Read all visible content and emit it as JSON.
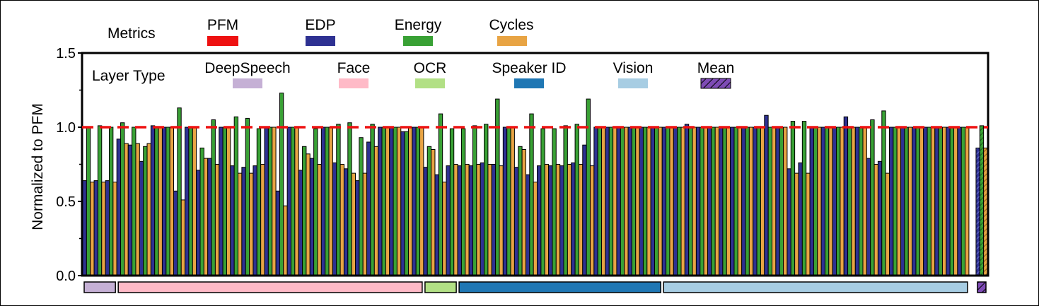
{
  "chart_data": {
    "type": "bar",
    "ylabel": "Normalized to PFM",
    "ylim": [
      0.0,
      1.5
    ],
    "yticks": [
      "0.0",
      "0.5",
      "1.0",
      "1.5"
    ],
    "reference_line": {
      "name": "PFM",
      "value": 1.0,
      "color": "#ee1111"
    },
    "metrics_title": "Metrics",
    "metrics_legend": [
      {
        "name": "PFM",
        "color": "#ee1111"
      },
      {
        "name": "EDP",
        "color": "#2e3192"
      },
      {
        "name": "Energy",
        "color": "#39a135"
      },
      {
        "name": "Cycles",
        "color": "#e8a444"
      }
    ],
    "layer_title": "Layer Type",
    "layer_types": [
      {
        "name": "DeepSpeech",
        "color": "#c5b0d5",
        "count": 3
      },
      {
        "name": "Face",
        "color": "#ffbac7",
        "count": 27
      },
      {
        "name": "OCR",
        "color": "#b2e085",
        "count": 3
      },
      {
        "name": "Speaker ID",
        "color": "#1f77b4",
        "count": 18
      },
      {
        "name": "Vision",
        "color": "#a7cde3",
        "count": 27
      },
      {
        "name": "Mean",
        "color": "#7e4bb5",
        "hatched": true,
        "count": 1
      }
    ],
    "series_order": [
      "EDP",
      "Energy",
      "Cycles"
    ],
    "groups": [
      [
        0.64,
        1.0,
        0.63
      ],
      [
        0.64,
        1.01,
        0.63
      ],
      [
        0.64,
        1.0,
        0.63
      ],
      [
        0.92,
        1.03,
        0.89
      ],
      [
        0.88,
        1.0,
        0.89
      ],
      [
        0.77,
        0.87,
        0.89
      ],
      [
        1.01,
        1.0,
        1.0
      ],
      [
        1.0,
        1.0,
        1.0
      ],
      [
        0.57,
        1.13,
        0.51
      ],
      [
        1.0,
        1.0,
        1.0
      ],
      [
        0.71,
        0.86,
        0.79
      ],
      [
        0.79,
        1.05,
        0.75
      ],
      [
        1.0,
        1.0,
        1.0
      ],
      [
        0.74,
        1.07,
        0.69
      ],
      [
        0.73,
        1.06,
        0.69
      ],
      [
        0.74,
        0.99,
        0.75
      ],
      [
        1.0,
        1.0,
        1.0
      ],
      [
        0.57,
        1.23,
        0.47
      ],
      [
        1.0,
        1.0,
        1.0
      ],
      [
        0.71,
        0.87,
        0.82
      ],
      [
        0.79,
        0.99,
        0.75
      ],
      [
        1.0,
        1.0,
        1.0
      ],
      [
        0.76,
        1.02,
        0.75
      ],
      [
        0.72,
        1.03,
        0.69
      ],
      [
        0.64,
        0.93,
        0.69
      ],
      [
        0.9,
        1.02,
        0.87
      ],
      [
        1.0,
        1.0,
        1.0
      ],
      [
        1.0,
        1.0,
        1.0
      ],
      [
        0.97,
        0.97,
        1.0
      ],
      [
        1.0,
        1.0,
        1.0
      ],
      [
        0.73,
        0.87,
        0.85
      ],
      [
        0.68,
        1.09,
        0.63
      ],
      [
        0.74,
        0.99,
        0.75
      ],
      [
        0.74,
        0.99,
        0.75
      ],
      [
        0.74,
        1.01,
        0.75
      ],
      [
        0.76,
        1.02,
        0.75
      ],
      [
        0.75,
        1.19,
        0.74
      ],
      [
        1.0,
        1.0,
        1.0
      ],
      [
        0.73,
        0.87,
        0.85
      ],
      [
        0.68,
        1.09,
        0.63
      ],
      [
        0.74,
        0.99,
        0.75
      ],
      [
        0.74,
        0.99,
        0.75
      ],
      [
        0.74,
        1.01,
        0.75
      ],
      [
        0.76,
        1.02,
        0.75
      ],
      [
        0.88,
        1.19,
        0.74
      ],
      [
        1.0,
        1.0,
        1.0
      ],
      [
        1.0,
        1.0,
        1.0
      ],
      [
        1.0,
        1.0,
        1.0
      ],
      [
        1.0,
        1.0,
        1.0
      ],
      [
        1.0,
        1.0,
        1.0
      ],
      [
        1.0,
        1.0,
        1.0
      ],
      [
        1.0,
        1.0,
        1.0
      ],
      [
        1.0,
        1.0,
        1.0
      ],
      [
        1.02,
        1.0,
        1.0
      ],
      [
        1.0,
        1.0,
        1.0
      ],
      [
        1.0,
        1.0,
        1.0
      ],
      [
        1.0,
        1.0,
        1.0
      ],
      [
        1.0,
        1.0,
        1.0
      ],
      [
        1.0,
        1.0,
        1.0
      ],
      [
        1.0,
        1.0,
        1.0
      ],
      [
        1.08,
        1.0,
        1.0
      ],
      [
        1.0,
        1.0,
        1.0
      ],
      [
        0.72,
        1.04,
        0.69
      ],
      [
        0.76,
        1.04,
        0.69
      ],
      [
        1.0,
        1.0,
        1.0
      ],
      [
        1.0,
        1.0,
        1.0
      ],
      [
        1.0,
        1.0,
        1.0
      ],
      [
        1.07,
        1.0,
        1.0
      ],
      [
        1.0,
        1.0,
        1.0
      ],
      [
        0.79,
        1.05,
        0.75
      ],
      [
        0.77,
        1.11,
        0.69
      ],
      [
        1.0,
        1.0,
        1.0
      ],
      [
        1.0,
        1.0,
        1.0
      ],
      [
        1.0,
        1.0,
        1.0
      ],
      [
        1.0,
        1.0,
        1.0
      ],
      [
        1.0,
        1.0,
        1.0
      ],
      [
        1.0,
        1.0,
        1.0
      ],
      [
        1.0,
        1.0,
        1.0
      ],
      [
        0.86,
        1.01,
        0.86
      ]
    ]
  }
}
